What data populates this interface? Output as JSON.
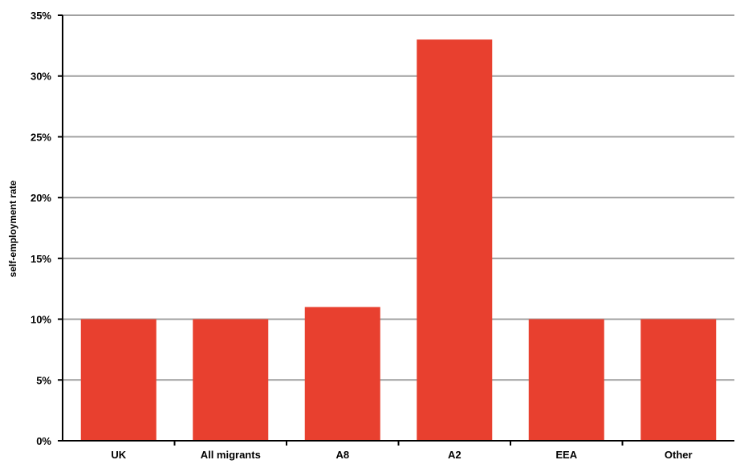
{
  "chart_data": {
    "type": "bar",
    "categories": [
      "UK",
      "All migrants",
      "A8",
      "A2",
      "EEA",
      "Other"
    ],
    "values": [
      10,
      10,
      11,
      33,
      10,
      10
    ],
    "ylabel": "self-employment rate",
    "ylim": [
      0,
      35
    ],
    "yticks": [
      0,
      5,
      10,
      15,
      20,
      25,
      30,
      35
    ],
    "ytick_labels": [
      "0%",
      "5%",
      "10%",
      "15%",
      "20%",
      "25%",
      "30%",
      "35%"
    ],
    "grid": true,
    "legend": "none",
    "bar_color": "#e8402f",
    "grid_color": "#a0a0a0"
  }
}
